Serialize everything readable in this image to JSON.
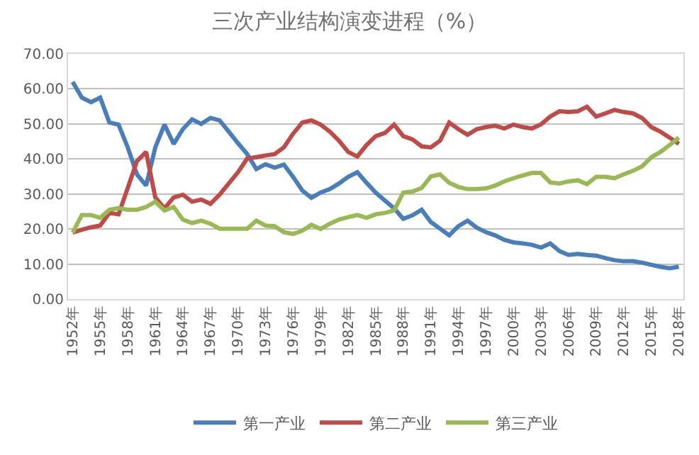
{
  "chart_data": {
    "type": "line",
    "title": "三次产业结构演变进程（%）",
    "categories": [
      "1952年",
      null,
      null,
      "1955年",
      null,
      null,
      "1958年",
      null,
      null,
      "1961年",
      null,
      null,
      "1964年",
      null,
      null,
      "1967年",
      null,
      null,
      "1970年",
      null,
      null,
      "1973年",
      null,
      null,
      "1976年",
      null,
      null,
      "1979年",
      null,
      null,
      "1982年",
      null,
      null,
      "1985年",
      null,
      null,
      "1988年",
      null,
      null,
      "1991年",
      null,
      null,
      "1994年",
      null,
      null,
      "1997年",
      null,
      null,
      "2000年",
      null,
      null,
      "2003年",
      null,
      null,
      "2006年",
      null,
      null,
      "2009年",
      null,
      null,
      "2012年",
      null,
      null,
      "2015年",
      null,
      null,
      "2018年"
    ],
    "series": [
      {
        "name": "第一产业",
        "color": "#4a7ebb",
        "values": [
          62.0,
          57.5,
          56.2,
          57.5,
          50.4,
          49.8,
          43.3,
          35.6,
          32.4,
          43.3,
          49.8,
          44.3,
          48.5,
          51.3,
          50.0,
          51.7,
          51.0,
          47.8,
          44.5,
          41.4,
          37.1,
          38.5,
          37.5,
          38.4,
          34.9,
          31.0,
          28.9,
          30.4,
          31.4,
          33.0,
          34.9,
          36.2,
          33.2,
          30.4,
          28.1,
          25.9,
          22.9,
          23.9,
          25.5,
          22.0,
          20.1,
          18.2,
          20.8,
          22.4,
          20.4,
          19.1,
          18.2,
          16.9,
          16.2,
          15.9,
          15.5,
          14.7,
          15.9,
          13.7,
          12.6,
          12.9,
          12.6,
          12.4,
          11.7,
          11.1,
          10.8,
          10.8,
          10.4,
          9.8,
          9.2,
          8.8,
          9.2
        ]
      },
      {
        "name": "第二产业",
        "color": "#be4b48",
        "values": [
          19.0,
          19.8,
          20.5,
          21.0,
          24.6,
          24.2,
          31.7,
          39.4,
          42.0,
          29.0,
          25.9,
          29.0,
          29.8,
          27.8,
          28.4,
          27.2,
          29.8,
          33.0,
          36.2,
          40.1,
          40.5,
          41.0,
          41.4,
          43.3,
          47.2,
          50.4,
          51.0,
          49.8,
          47.8,
          45.2,
          42.0,
          40.7,
          44.0,
          46.5,
          47.4,
          49.8,
          46.5,
          45.6,
          43.6,
          43.3,
          45.2,
          50.4,
          48.5,
          46.9,
          48.5,
          49.1,
          49.5,
          48.7,
          49.8,
          49.1,
          48.7,
          49.9,
          52.1,
          53.6,
          53.4,
          53.6,
          54.9,
          52.1,
          53.0,
          54.0,
          53.4,
          53.0,
          51.7,
          49.1,
          47.8,
          46.1,
          44.3
        ]
      },
      {
        "name": "第三产业",
        "color": "#98b954",
        "values": [
          19.0,
          24.0,
          24.0,
          23.2,
          25.5,
          26.0,
          25.5,
          25.5,
          26.3,
          27.8,
          25.3,
          26.3,
          22.7,
          21.7,
          22.4,
          21.5,
          20.1,
          20.1,
          20.1,
          20.1,
          22.4,
          21.0,
          20.8,
          19.1,
          18.6,
          19.5,
          21.2,
          20.0,
          21.5,
          22.7,
          23.4,
          24.0,
          23.2,
          24.2,
          24.6,
          25.3,
          30.4,
          30.7,
          31.7,
          35.0,
          35.6,
          33.2,
          32.0,
          31.4,
          31.4,
          31.6,
          32.4,
          33.6,
          34.5,
          35.3,
          36.0,
          36.0,
          33.3,
          33.0,
          33.6,
          33.9,
          32.8,
          34.9,
          34.9,
          34.5,
          35.6,
          36.6,
          37.9,
          40.5,
          42.0,
          44.0,
          46.1
        ]
      }
    ],
    "ylim": [
      0,
      70
    ],
    "yticks": [
      {
        "value": 0,
        "label": "0.00"
      },
      {
        "value": 10,
        "label": "10.00"
      },
      {
        "value": 20,
        "label": "20.00"
      },
      {
        "value": 30,
        "label": "30.00"
      },
      {
        "value": 40,
        "label": "40.00"
      },
      {
        "value": 50,
        "label": "50.00"
      },
      {
        "value": 60,
        "label": "60.00"
      },
      {
        "value": 70,
        "label": "70.00"
      }
    ],
    "grid": "y",
    "legend": "bottom",
    "marker": "none",
    "line_style": "solid"
  }
}
